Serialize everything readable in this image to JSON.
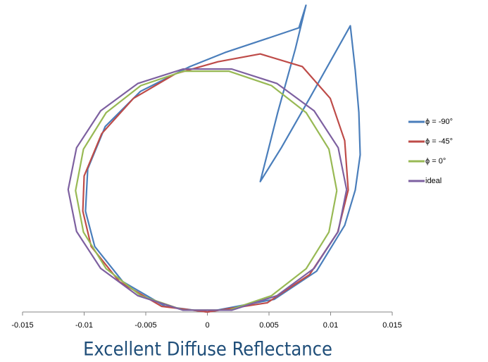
{
  "chart_data": {
    "type": "line",
    "title": "Excellent Diffuse Reflectance",
    "xlim": [
      -0.015,
      0.015
    ],
    "xticks": [
      -0.015,
      -0.01,
      -0.005,
      0,
      0.005,
      0.01,
      0.015
    ],
    "ylim": [
      0,
      0.0288
    ],
    "legend": "right",
    "series": [
      {
        "name": "ϕ = -90°",
        "color": "#4a7ebb",
        "x": [
          0,
          0.00543,
          0.00886,
          0.01114,
          0.012,
          0.0124,
          0.01229,
          0.012,
          0.0116,
          0.00829,
          0.006,
          0.00429,
          0.00571,
          0.00714,
          0.008,
          0.00743,
          0.00486,
          0.00143,
          -0.00143,
          -0.00543,
          -0.00829,
          -0.00971,
          -0.00989,
          -0.00914,
          -0.00686,
          -0.00343,
          0
        ],
        "y": [
          0,
          0.00117,
          0.00377,
          0.008,
          0.01126,
          0.01451,
          0.01842,
          0.02232,
          0.02642,
          0.01972,
          0.01516,
          0.01204,
          0.01842,
          0.02428,
          0.02831,
          0.02623,
          0.02525,
          0.02395,
          0.02265,
          0.02037,
          0.01712,
          0.01321,
          0.00931,
          0.00605,
          0.0028,
          0.00052,
          0
        ]
      },
      {
        "name": "ϕ = -45°",
        "color": "#be4b48",
        "x": [
          0,
          0.00486,
          0.00829,
          0.01057,
          0.01143,
          0.01114,
          0.00997,
          0.00771,
          0.00429,
          0.00086,
          -0.00257,
          -0.006,
          -0.00857,
          -0.01,
          -0.01011,
          -0.00943,
          -0.00714,
          -0.00371,
          0
        ],
        "y": [
          0,
          0.00085,
          0.00345,
          0.00735,
          0.01126,
          0.01582,
          0.01972,
          0.02265,
          0.02382,
          0.0231,
          0.022,
          0.01972,
          0.01647,
          0.01256,
          0.00931,
          0.00605,
          0.0028,
          0.00052,
          0
        ]
      },
      {
        "name": "ϕ = 0°",
        "color": "#98b954",
        "x": [
          0.0105,
          0.00986,
          0.00802,
          0.0052,
          0.00174,
          -0.00194,
          -0.0054,
          -0.00822,
          -0.01006,
          -0.0107,
          -0.01006,
          -0.00822,
          -0.0054,
          -0.00194,
          0.00174,
          0.0052,
          0.00802,
          0.00986,
          0.0105
        ],
        "y": [
          0.0112,
          0.01503,
          0.0184,
          0.0209,
          0.02223,
          0.02223,
          0.0209,
          0.0184,
          0.01503,
          0.0112,
          0.00737,
          0.004,
          0.0015,
          0.00017,
          0.00017,
          0.0015,
          0.004,
          0.00737,
          0.0112
        ]
      },
      {
        "name": "ideal",
        "color": "#7d60a0",
        "x": [
          0.0113,
          0.01062,
          0.00866,
          0.00565,
          0.00197,
          -0.00197,
          -0.00565,
          -0.00866,
          -0.01062,
          -0.0113,
          -0.01062,
          -0.00866,
          -0.00565,
          -0.00197,
          0.00197,
          0.00565,
          0.00866,
          0.01062,
          0.0113
        ],
        "y": [
          0.0113,
          0.01516,
          0.01857,
          0.02109,
          0.02243,
          0.02243,
          0.02109,
          0.01857,
          0.01516,
          0.0113,
          0.00744,
          0.00403,
          0.00151,
          0.00017,
          0.00017,
          0.00151,
          0.00403,
          0.00744,
          0.0113
        ]
      }
    ]
  }
}
